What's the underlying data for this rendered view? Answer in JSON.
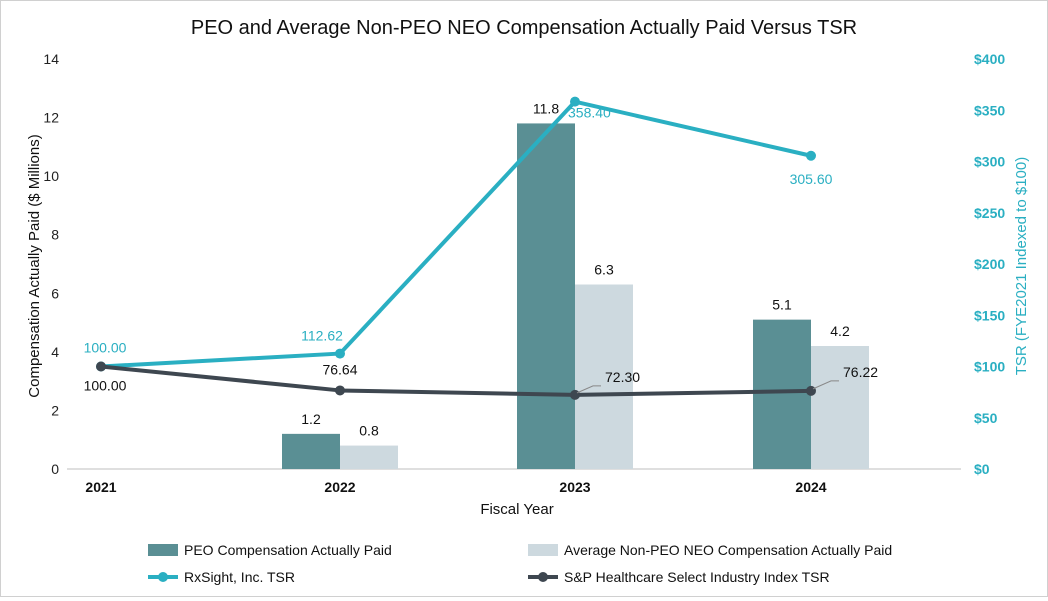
{
  "chart_data": {
    "type": "bar",
    "title": "PEO and Average Non-PEO NEO Compensation Actually Paid Versus TSR",
    "xlabel": "Fiscal Year",
    "ylabel": "Compensation Actually Paid ($ Millions)",
    "y2label": "TSR (FYE2021 Indexed to $100)",
    "categories": [
      "2021",
      "2022",
      "2023",
      "2024"
    ],
    "ylim": [
      0,
      14
    ],
    "y_ticks": [
      "0",
      "2",
      "4",
      "6",
      "8",
      "10",
      "12",
      "14"
    ],
    "y2lim": [
      0,
      400
    ],
    "y2_ticks": [
      "$0",
      "$50",
      "$100",
      "$150",
      "$200",
      "$250",
      "$300",
      "$350",
      "$400"
    ],
    "legend_position": "bottom",
    "series": [
      {
        "name": "PEO Compensation Actually Paid",
        "kind": "bar",
        "axis": "left",
        "color": "#5a8f94",
        "values": [
          null,
          1.2,
          11.8,
          5.1
        ],
        "labels": [
          "",
          "1.2",
          "11.8",
          "5.1"
        ]
      },
      {
        "name": "Average Non-PEO NEO Compensation Actually Paid",
        "kind": "bar",
        "axis": "left",
        "color": "#cdd9df",
        "values": [
          null,
          0.8,
          6.3,
          4.2
        ],
        "labels": [
          "",
          "0.8",
          "6.3",
          "4.2"
        ]
      },
      {
        "name": "RxSight, Inc. TSR",
        "kind": "line",
        "axis": "right",
        "color": "#2aafc2",
        "values": [
          100.0,
          112.62,
          358.4,
          305.6
        ],
        "labels": [
          "100.00",
          "112.62",
          "358.40",
          "305.60"
        ]
      },
      {
        "name": "S&P Healthcare Select Industry Index TSR",
        "kind": "line",
        "axis": "right",
        "color": "#3e4750",
        "values": [
          100.0,
          76.64,
          72.3,
          76.22
        ],
        "labels": [
          "100.00",
          "76.64",
          "72.30",
          "76.22"
        ]
      }
    ]
  }
}
